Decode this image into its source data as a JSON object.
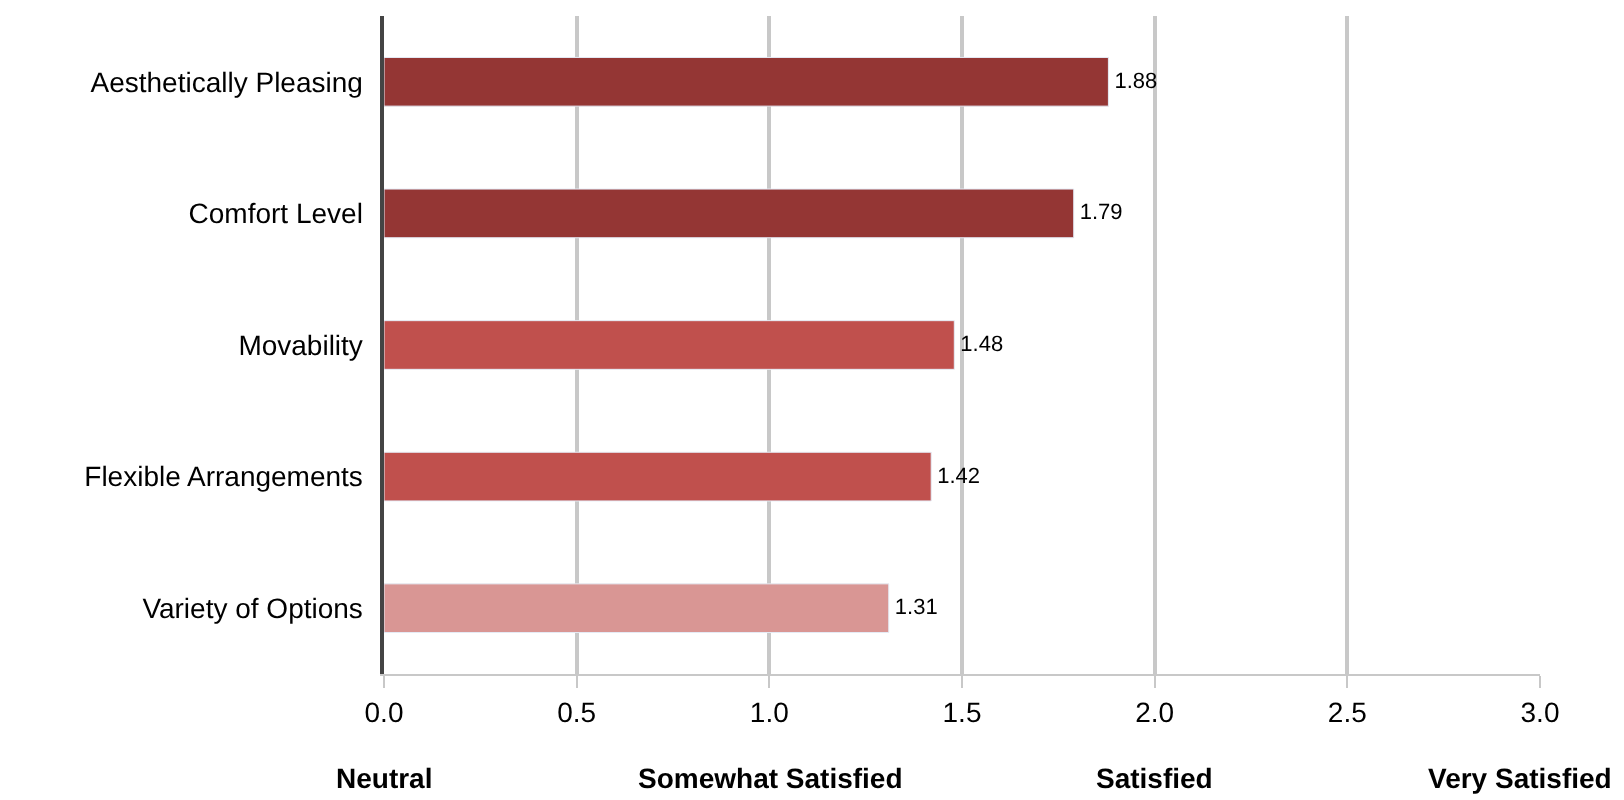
{
  "chart_data": {
    "type": "bar",
    "orientation": "horizontal",
    "categories": [
      "Aesthetically Pleasing",
      "Comfort Level",
      "Movability",
      "Flexible Arrangements",
      "Variety of Options"
    ],
    "values": [
      1.88,
      1.79,
      1.48,
      1.42,
      1.31
    ],
    "colors": [
      "#943634",
      "#943634",
      "#c0504d",
      "#c0504d",
      "#d99694"
    ],
    "data_labels": true,
    "xlim": [
      0,
      3
    ],
    "xticks": [
      {
        "value": 0,
        "label": "0.0"
      },
      {
        "value": 0.5,
        "label": "0.5"
      },
      {
        "value": 1,
        "label": "1.0"
      },
      {
        "value": 1.5,
        "label": "1.5"
      },
      {
        "value": 2,
        "label": "2.0"
      },
      {
        "value": 2.5,
        "label": "2.5"
      },
      {
        "value": 3,
        "label": "3.0"
      }
    ],
    "annotations": [
      "Neutral",
      "Somewhat Satisfied",
      "Satisfied",
      "Very Satisfied"
    ],
    "grid": "x",
    "legend": false
  }
}
